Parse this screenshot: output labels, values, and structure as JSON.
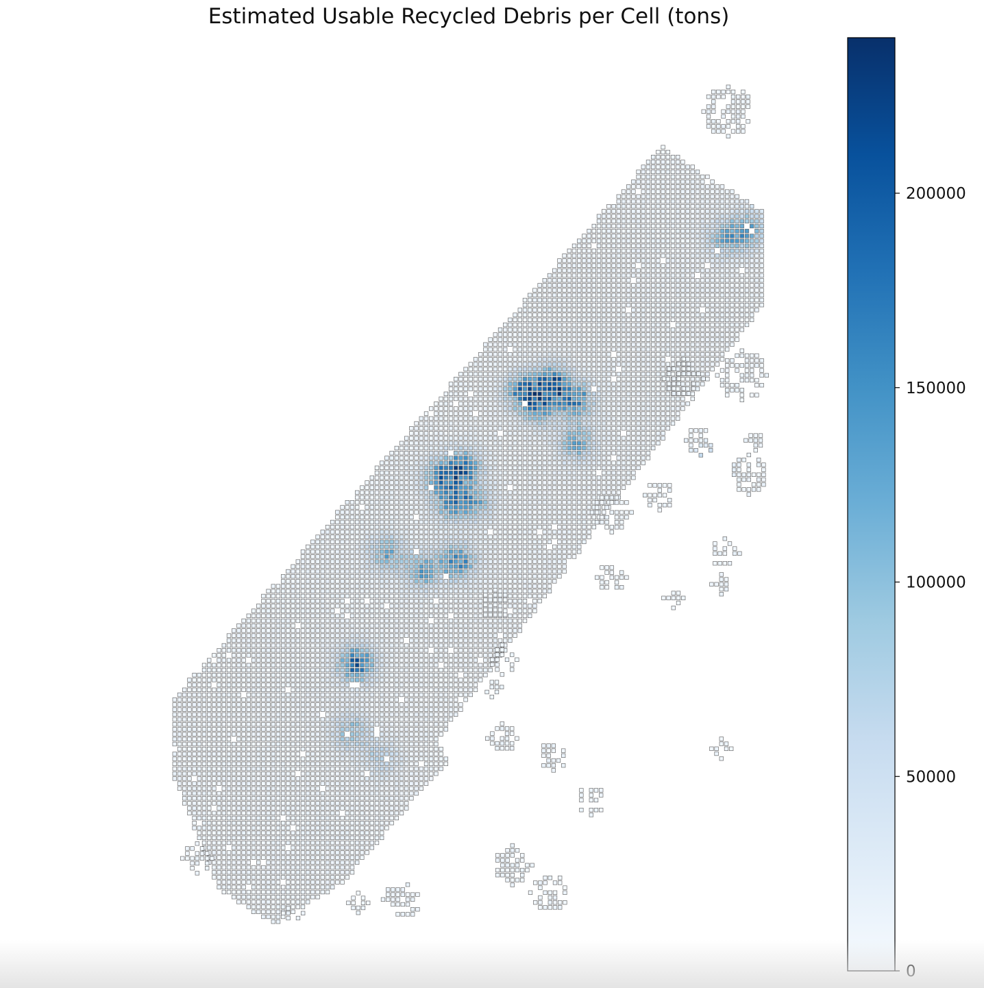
{
  "chart_data": {
    "type": "heatmap",
    "title": "Estimated Usable Recycled Debris per Cell (tons)",
    "xlabel": "",
    "ylabel": "",
    "axes_visible": false,
    "colormap": "Blues",
    "grid_cell_outline_color": "#6b6b6b",
    "colorbar": {
      "range": [
        0,
        240000
      ],
      "ticks": [
        0,
        50000,
        100000,
        150000,
        200000
      ],
      "tick_labels": [
        "0",
        "50000",
        "100000",
        "150000",
        "200000"
      ],
      "placement": "right"
    },
    "hotspots": [
      {
        "x": 0.64,
        "y": 0.36,
        "value": 230000
      },
      {
        "x": 0.59,
        "y": 0.37,
        "value": 195000
      },
      {
        "x": 0.68,
        "y": 0.38,
        "value": 180000
      },
      {
        "x": 0.62,
        "y": 0.39,
        "value": 150000
      },
      {
        "x": 0.49,
        "y": 0.46,
        "value": 210000
      },
      {
        "x": 0.45,
        "y": 0.47,
        "value": 160000
      },
      {
        "x": 0.47,
        "y": 0.5,
        "value": 170000
      },
      {
        "x": 0.51,
        "y": 0.5,
        "value": 120000
      },
      {
        "x": 0.36,
        "y": 0.56,
        "value": 140000
      },
      {
        "x": 0.42,
        "y": 0.58,
        "value": 150000
      },
      {
        "x": 0.48,
        "y": 0.57,
        "value": 190000
      },
      {
        "x": 0.31,
        "y": 0.69,
        "value": 230000
      },
      {
        "x": 0.3,
        "y": 0.77,
        "value": 110000
      },
      {
        "x": 0.35,
        "y": 0.8,
        "value": 80000
      },
      {
        "x": 0.97,
        "y": 0.18,
        "value": 150000
      },
      {
        "x": 0.93,
        "y": 0.19,
        "value": 120000
      },
      {
        "x": 0.68,
        "y": 0.43,
        "value": 140000
      },
      {
        "x": 0.9,
        "y": 0.46,
        "value": 130000
      }
    ]
  }
}
